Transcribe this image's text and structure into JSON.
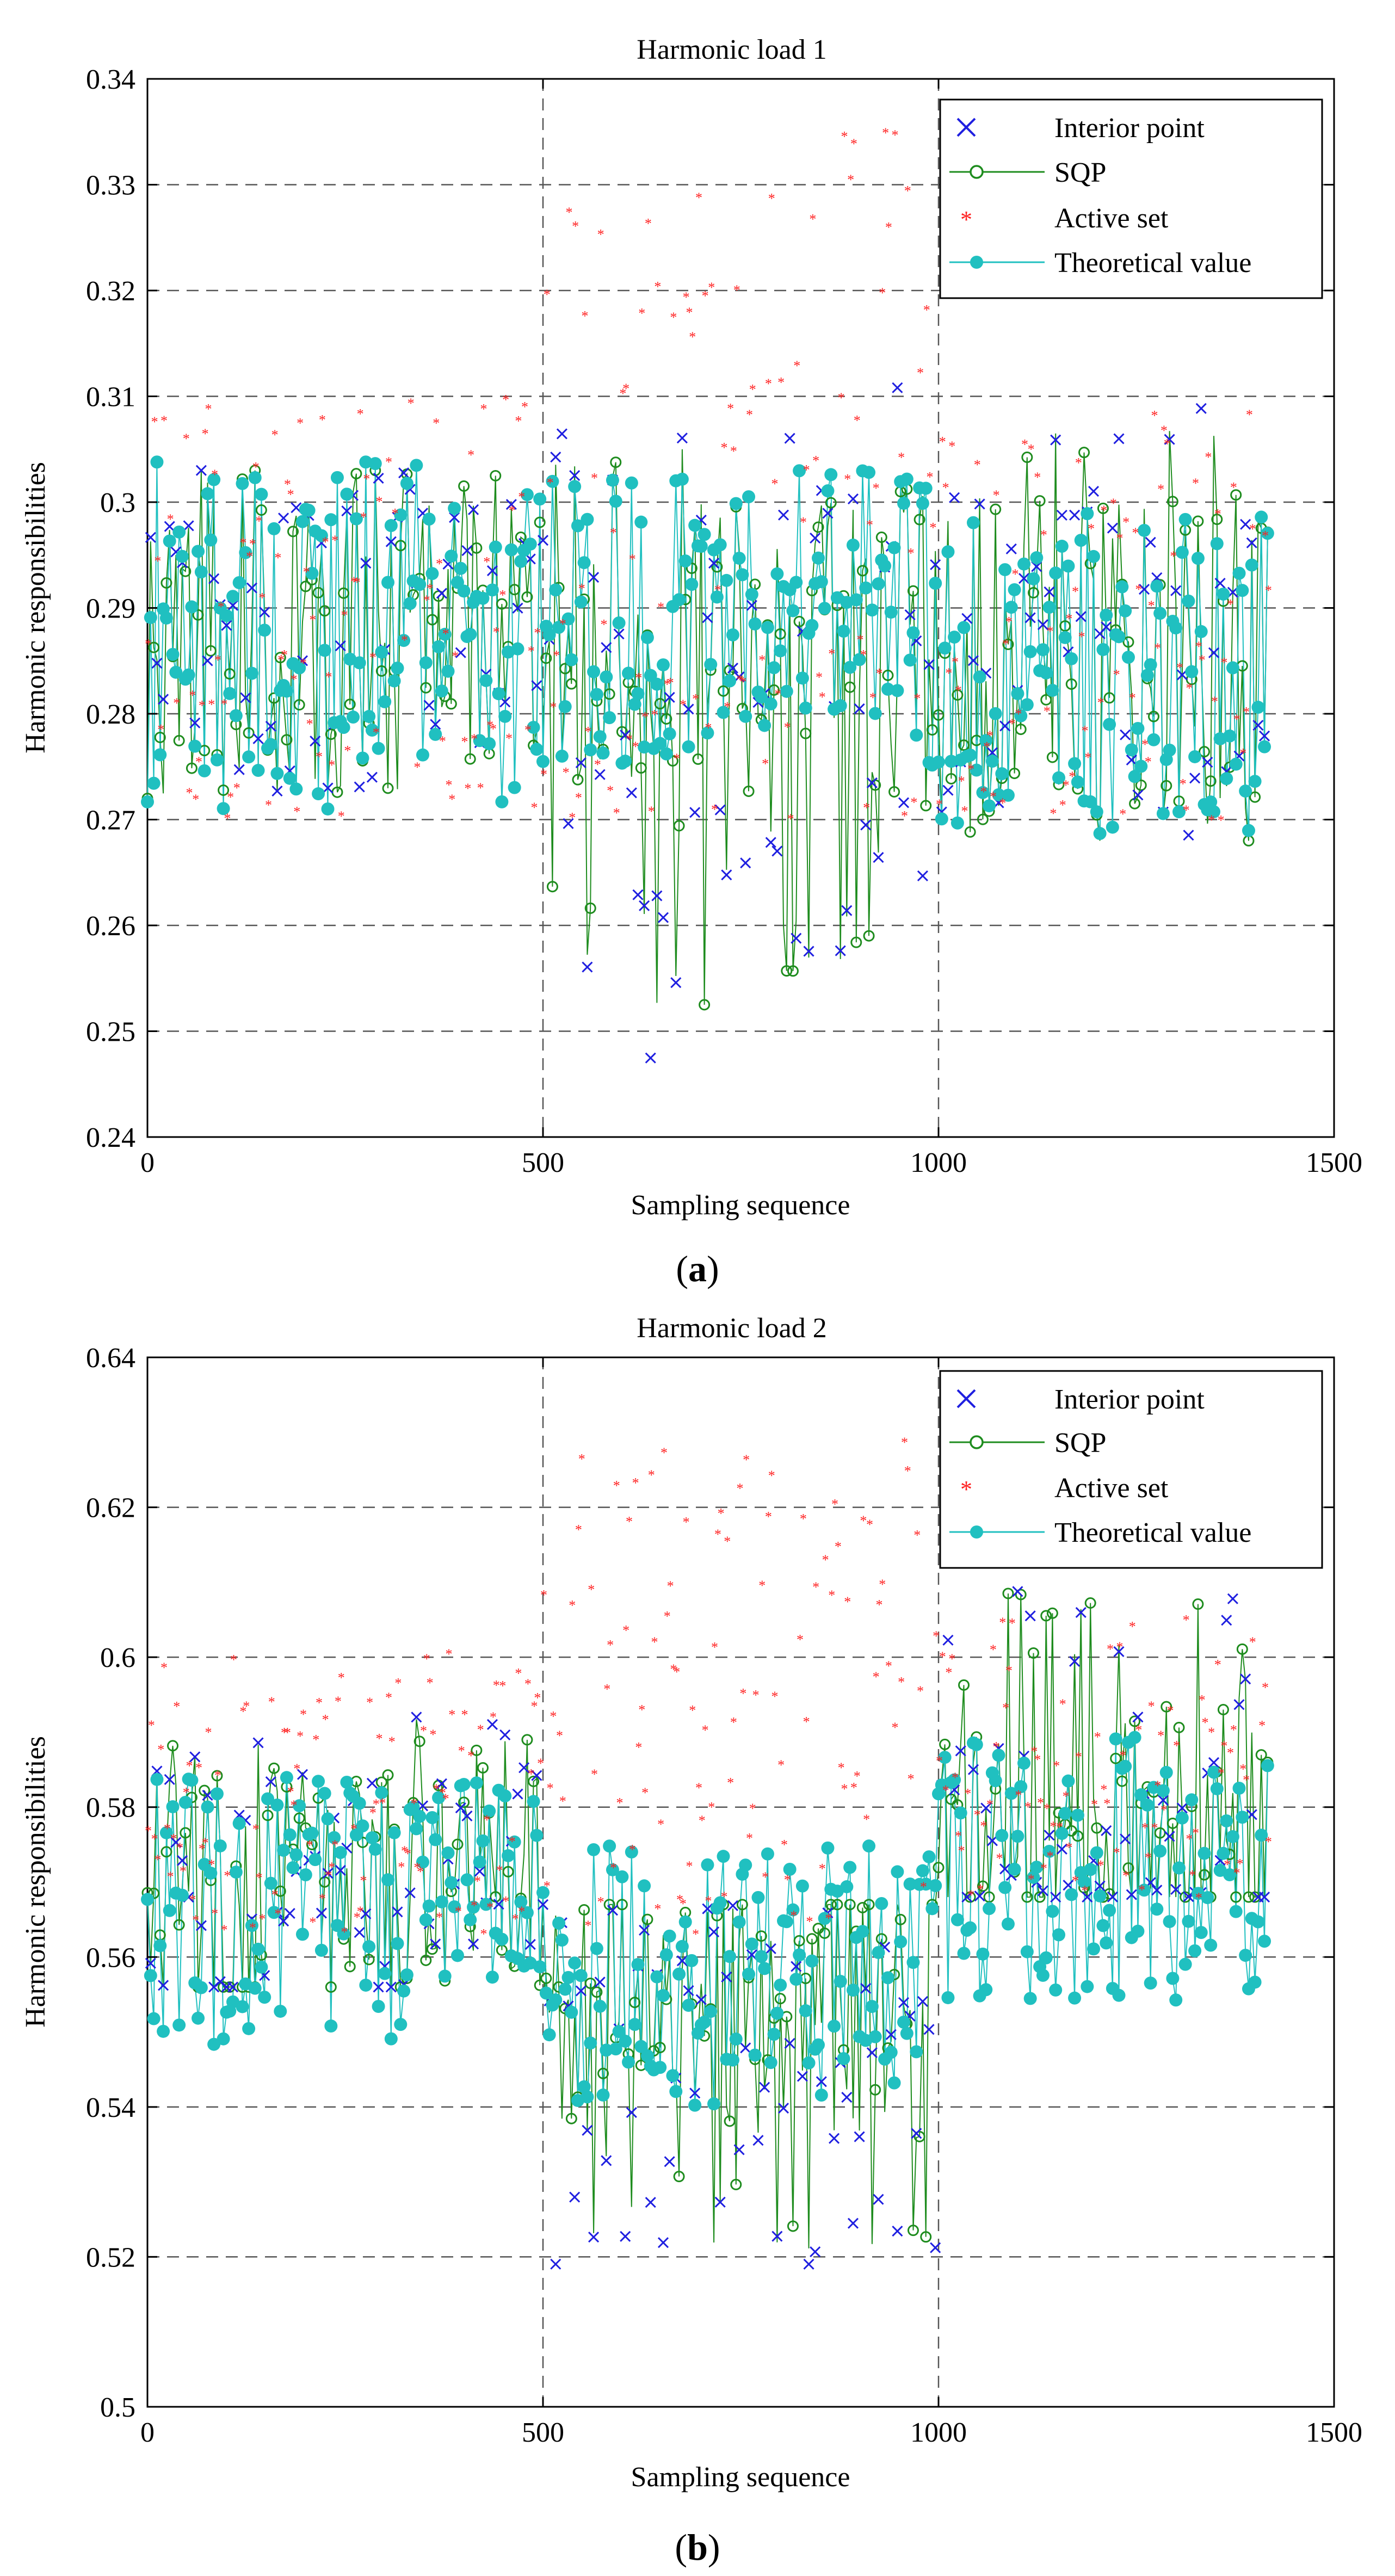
{
  "figure": {
    "panels": [
      {
        "caption": "(a)",
        "caption_open": "(",
        "caption_letter": "a",
        "caption_close": ")"
      },
      {
        "caption": "(b)",
        "caption_open": "(",
        "caption_letter": "b",
        "caption_close": ")"
      }
    ]
  },
  "colors": {
    "interior_point": "#1f1fe0",
    "sqp": "#1e8c1e",
    "active_set": "#ff2020",
    "theoretical": "#20c0c0",
    "grid": "#555555",
    "axis": "#000000"
  },
  "chart_data": [
    {
      "type": "scatter",
      "title": "Harmonic load 1",
      "xlabel": "Sampling sequence",
      "ylabel": "Harmonic responsibilities",
      "xlim": [
        0,
        1500
      ],
      "ylim": [
        0.24,
        0.34
      ],
      "xticks": [
        0,
        500,
        1000,
        1500
      ],
      "xtick_labels": [
        "0",
        "500",
        "1000",
        "1500"
      ],
      "yticks": [
        0.24,
        0.25,
        0.26,
        0.27,
        0.28,
        0.29,
        0.3,
        0.31,
        0.32,
        0.33,
        0.34
      ],
      "ytick_labels": [
        "0.24",
        "0.25",
        "0.26",
        "0.27",
        "0.28",
        "0.29",
        "0.3",
        "0.31",
        "0.32",
        "0.33",
        "0.34"
      ],
      "grid": "dashed horizontal lines; vertical dashed lines at x=500 and x=1000",
      "vlines": [
        500,
        1000
      ],
      "legend_position": "top-right",
      "n_samples": 1420,
      "segment_summary": [
        {
          "x_range": [
            0,
            500
          ],
          "theoretical_range": [
            0.271,
            0.304
          ],
          "active_set_range": [
            0.27,
            0.31
          ],
          "sqp_range": [
            0.272,
            0.303
          ],
          "interior_range": [
            0.272,
            0.303
          ]
        },
        {
          "x_range": [
            500,
            1000
          ],
          "theoretical_range": [
            0.275,
            0.303
          ],
          "active_set_range": [
            0.27,
            0.336
          ],
          "sqp_range": [
            0.252,
            0.305
          ],
          "interior_range": [
            0.246,
            0.313
          ]
        },
        {
          "x_range": [
            1000,
            1420
          ],
          "theoretical_range": [
            0.268,
            0.299
          ],
          "active_set_range": [
            0.27,
            0.31
          ],
          "sqp_range": [
            0.268,
            0.309
          ],
          "interior_range": [
            0.268,
            0.309
          ]
        }
      ],
      "series": [
        {
          "name": "Interior point",
          "marker": "x",
          "line": "none"
        },
        {
          "name": "SQP",
          "marker": "o (open)",
          "line": "solid thin"
        },
        {
          "name": "Active set",
          "marker": "* (small star)",
          "line": "none"
        },
        {
          "name": "Theoretical value",
          "marker": "● (filled)",
          "line": "solid thin"
        }
      ]
    },
    {
      "type": "scatter",
      "title": "Harmonic load 2",
      "xlabel": "Sampling sequence",
      "ylabel": "Harmonic responsibilities",
      "xlim": [
        0,
        1500
      ],
      "ylim": [
        0.5,
        0.64
      ],
      "xticks": [
        0,
        500,
        1000,
        1500
      ],
      "xtick_labels": [
        "0",
        "500",
        "1000",
        "1500"
      ],
      "yticks": [
        0.5,
        0.52,
        0.54,
        0.56,
        0.58,
        0.6,
        0.62,
        0.64
      ],
      "ytick_labels": [
        "0.5",
        "0.52",
        "0.54",
        "0.56",
        "0.58",
        "0.6",
        "0.62",
        "0.64"
      ],
      "grid": "dashed horizontal lines; vertical dashed lines at x=500 and x=1000",
      "vlines": [
        500,
        1000
      ],
      "legend_position": "top-right",
      "n_samples": 1420,
      "segment_summary": [
        {
          "x_range": [
            0,
            500
          ],
          "theoretical_range": [
            0.548,
            0.584
          ],
          "active_set_range": [
            0.563,
            0.601
          ],
          "sqp_range": [
            0.556,
            0.592
          ],
          "interior_range": [
            0.556,
            0.592
          ]
        },
        {
          "x_range": [
            500,
            1000
          ],
          "theoretical_range": [
            0.54,
            0.575
          ],
          "active_set_range": [
            0.563,
            0.629
          ],
          "sqp_range": [
            0.521,
            0.567
          ],
          "interior_range": [
            0.519,
            0.567
          ]
        },
        {
          "x_range": [
            1000,
            1420
          ],
          "theoretical_range": [
            0.554,
            0.59
          ],
          "active_set_range": [
            0.568,
            0.606
          ],
          "sqp_range": [
            0.568,
            0.609
          ],
          "interior_range": [
            0.568,
            0.609
          ]
        }
      ],
      "series": [
        {
          "name": "Interior point",
          "marker": "x",
          "line": "none"
        },
        {
          "name": "SQP",
          "marker": "o (open)",
          "line": "solid thin"
        },
        {
          "name": "Active set",
          "marker": "* (small star)",
          "line": "none"
        },
        {
          "name": "Theoretical value",
          "marker": "● (filled)",
          "line": "solid thin"
        }
      ]
    }
  ]
}
